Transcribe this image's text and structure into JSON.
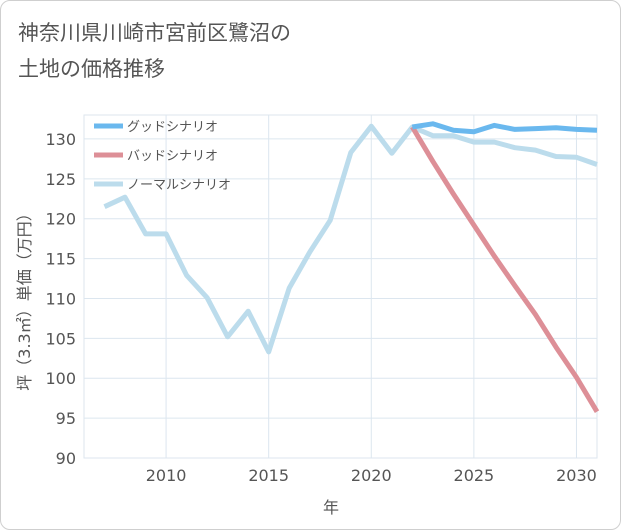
{
  "chart_data": {
    "type": "line",
    "title_line1": "神奈川県川崎市宮前区鷺沼の",
    "title_line2": "土地の価格推移",
    "xlabel": "年",
    "ylabel": "坪（3.3㎡）単価（万円）",
    "xlim": [
      2006,
      2031
    ],
    "ylim": [
      90,
      133
    ],
    "x_ticks": [
      2010,
      2015,
      2020,
      2025,
      2030
    ],
    "y_ticks": [
      90,
      95,
      100,
      105,
      110,
      115,
      120,
      125,
      130
    ],
    "grid": true,
    "legend_position": "top-left",
    "series": [
      {
        "name": "グッドシナリオ",
        "color": "#6ab8ee",
        "x": [
          2022,
          2023,
          2024,
          2025,
          2026,
          2027,
          2028,
          2029,
          2030,
          2031
        ],
        "values": [
          131.5,
          131.9,
          131.1,
          130.9,
          131.7,
          131.2,
          131.3,
          131.4,
          131.2,
          131.1
        ]
      },
      {
        "name": "バッドシナリオ",
        "color": "#dd8f97",
        "x": [
          2022,
          2023,
          2024,
          2025,
          2026,
          2027,
          2028,
          2029,
          2030,
          2031
        ],
        "values": [
          131.5,
          127.2,
          123.1,
          119.2,
          115.3,
          111.6,
          108.0,
          103.9,
          100.1,
          95.8
        ]
      },
      {
        "name": "ノーマルシナリオ",
        "color": "#bcdcec",
        "x": [
          2007,
          2008,
          2009,
          2010,
          2011,
          2012,
          2013,
          2014,
          2015,
          2016,
          2017,
          2018,
          2019,
          2020,
          2021,
          2022,
          2023,
          2024,
          2025,
          2026,
          2027,
          2028,
          2029,
          2030,
          2031
        ],
        "values": [
          121.5,
          122.7,
          118.1,
          118.1,
          112.9,
          110.1,
          105.2,
          108.4,
          103.3,
          111.3,
          115.8,
          119.8,
          128.3,
          131.6,
          128.2,
          131.5,
          130.4,
          130.4,
          129.6,
          129.6,
          128.9,
          128.6,
          127.8,
          127.7,
          126.8
        ]
      }
    ]
  }
}
